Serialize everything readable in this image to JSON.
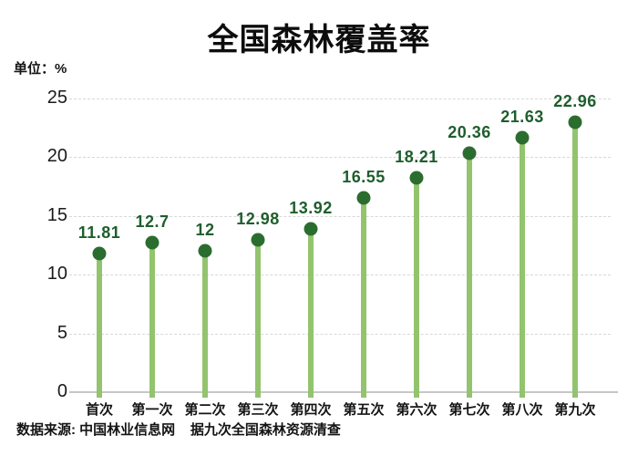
{
  "chart_data": {
    "type": "lollipop",
    "title": "全国森林覆盖率",
    "unit_label": "单位：%",
    "categories": [
      "首次",
      "第一次",
      "第二次",
      "第三次",
      "第四次",
      "第五次",
      "第六次",
      "第七次",
      "第八次",
      "第九次"
    ],
    "values": [
      11.81,
      12.7,
      12,
      12.98,
      13.92,
      16.55,
      18.21,
      20.36,
      21.63,
      22.96
    ],
    "value_labels": [
      "11.81",
      "12.7",
      "12",
      "12.98",
      "13.92",
      "16.55",
      "18.21",
      "20.36",
      "21.63",
      "22.96"
    ],
    "yticks": [
      0,
      5,
      10,
      15,
      20,
      25
    ],
    "ylim": [
      0,
      25
    ],
    "grid": "horizontal-dashed",
    "legend": "none",
    "source_note": "数据来源: 中国林业信息网    据九次全国森林资源清查",
    "colors": {
      "stem": "#92c46e",
      "dot": "#2b6d2f",
      "value_label": "#1e5e2d",
      "grid_line": "#d8d8d8",
      "axis_line": "#c6c6c6",
      "text": "#141414"
    }
  }
}
